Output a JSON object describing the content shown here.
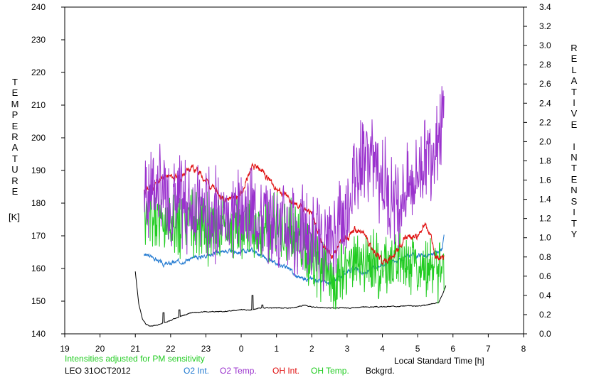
{
  "chart_data": {
    "type": "line",
    "y_left_label": "TEMPERATURE",
    "y_left_unit": "[K]",
    "y_right_label": "RELATIVE INTENSITY",
    "x_label": "Local Standard Time [h]",
    "note": "Intensities adjusted for PM sensitivity",
    "station_date": "LEO 31OCT2012",
    "x_ticks": [
      "19",
      "20",
      "21",
      "22",
      "23",
      "0",
      "1",
      "2",
      "3",
      "4",
      "5",
      "6",
      "7",
      "8"
    ],
    "xlim": [
      19,
      32
    ],
    "ylim_left": [
      140,
      240
    ],
    "ylim_right": [
      0.0,
      3.4
    ],
    "y_left_ticks": [
      140,
      150,
      160,
      170,
      180,
      190,
      200,
      210,
      220,
      230,
      240
    ],
    "y_right_ticks": [
      "0.0",
      "0.2",
      "0.4",
      "0.6",
      "0.8",
      "1.0",
      "1.2",
      "1.4",
      "1.6",
      "1.8",
      "2.0",
      "2.2",
      "2.4",
      "2.6",
      "2.8",
      "3.0",
      "3.2",
      "3.4"
    ],
    "grid": false,
    "series": [
      {
        "name": "O2 Int.",
        "axis": "right",
        "color": "#1f78d0",
        "style": "noise",
        "seed": 3,
        "amp": 0.03,
        "knots": [
          [
            21.25,
            0.82
          ],
          [
            21.5,
            0.8
          ],
          [
            21.8,
            0.72
          ],
          [
            22.2,
            0.75
          ],
          [
            22.6,
            0.78
          ],
          [
            23.0,
            0.82
          ],
          [
            23.5,
            0.86
          ],
          [
            24.0,
            0.85
          ],
          [
            24.3,
            0.88
          ],
          [
            24.6,
            0.8
          ],
          [
            25.0,
            0.72
          ],
          [
            25.3,
            0.7
          ],
          [
            25.55,
            0.6
          ],
          [
            25.8,
            0.58
          ],
          [
            26.2,
            0.56
          ],
          [
            26.5,
            0.52
          ],
          [
            27.0,
            0.65
          ],
          [
            27.2,
            0.68
          ],
          [
            27.5,
            0.62
          ],
          [
            27.8,
            0.7
          ],
          [
            28.0,
            0.72
          ],
          [
            28.5,
            0.78
          ],
          [
            28.8,
            0.82
          ],
          [
            29.2,
            0.8
          ],
          [
            29.5,
            0.84
          ],
          [
            29.7,
            0.88
          ],
          [
            29.75,
            1.05
          ]
        ]
      },
      {
        "name": "O2 Temp.",
        "axis": "left",
        "color": "#9a32cd",
        "style": "spiky",
        "seed": 7,
        "amp": 12,
        "knots": [
          [
            21.25,
            183
          ],
          [
            21.5,
            185
          ],
          [
            22.0,
            180
          ],
          [
            22.5,
            180
          ],
          [
            23.0,
            177
          ],
          [
            23.5,
            176
          ],
          [
            24.0,
            178
          ],
          [
            24.5,
            176
          ],
          [
            25.0,
            173
          ],
          [
            25.5,
            172
          ],
          [
            25.8,
            170
          ],
          [
            26.2,
            168
          ],
          [
            26.5,
            168
          ],
          [
            27.0,
            178
          ],
          [
            27.3,
            192
          ],
          [
            27.5,
            196
          ],
          [
            27.8,
            192
          ],
          [
            28.2,
            182
          ],
          [
            28.5,
            182
          ],
          [
            28.8,
            185
          ],
          [
            29.0,
            190
          ],
          [
            29.3,
            195
          ],
          [
            29.6,
            202
          ],
          [
            29.75,
            206
          ]
        ]
      },
      {
        "name": "OH Int.",
        "axis": "right",
        "color": "#e01010",
        "style": "noise",
        "seed": 11,
        "amp": 0.05,
        "knots": [
          [
            21.25,
            1.48
          ],
          [
            21.5,
            1.52
          ],
          [
            21.8,
            1.64
          ],
          [
            22.3,
            1.62
          ],
          [
            22.6,
            1.75
          ],
          [
            23.0,
            1.6
          ],
          [
            23.5,
            1.4
          ],
          [
            24.0,
            1.45
          ],
          [
            24.3,
            1.73
          ],
          [
            24.6,
            1.7
          ],
          [
            24.9,
            1.55
          ],
          [
            25.2,
            1.45
          ],
          [
            25.5,
            1.35
          ],
          [
            25.8,
            1.3
          ],
          [
            26.0,
            1.25
          ],
          [
            26.3,
            0.95
          ],
          [
            26.6,
            0.8
          ],
          [
            26.8,
            0.95
          ],
          [
            27.0,
            1.0
          ],
          [
            27.2,
            1.08
          ],
          [
            27.5,
            1.03
          ],
          [
            27.7,
            0.9
          ],
          [
            28.0,
            0.75
          ],
          [
            28.3,
            0.8
          ],
          [
            28.6,
            0.98
          ],
          [
            29.0,
            1.02
          ],
          [
            29.2,
            1.15
          ],
          [
            29.4,
            0.98
          ],
          [
            29.5,
            0.8
          ],
          [
            29.75,
            0.78
          ]
        ]
      },
      {
        "name": "OH Temp.",
        "axis": "left",
        "color": "#22cc22",
        "style": "spiky",
        "seed": 5,
        "amp": 9,
        "knots": [
          [
            21.25,
            176
          ],
          [
            21.5,
            175
          ],
          [
            22.0,
            174
          ],
          [
            22.5,
            174
          ],
          [
            23.0,
            173
          ],
          [
            23.5,
            172
          ],
          [
            24.0,
            173
          ],
          [
            24.5,
            173
          ],
          [
            25.0,
            172
          ],
          [
            25.5,
            170
          ],
          [
            26.0,
            165
          ],
          [
            26.3,
            160
          ],
          [
            26.6,
            155
          ],
          [
            27.0,
            160
          ],
          [
            27.3,
            163
          ],
          [
            27.6,
            162
          ],
          [
            28.0,
            162
          ],
          [
            28.5,
            162
          ],
          [
            29.0,
            160
          ],
          [
            29.3,
            162
          ],
          [
            29.5,
            160
          ],
          [
            29.75,
            158
          ]
        ]
      },
      {
        "name": "Bckgrd.",
        "axis": "right",
        "color": "#000000",
        "style": "noise",
        "seed": 2,
        "amp": 0.006,
        "knots": [
          [
            21.0,
            0.65
          ],
          [
            21.1,
            0.3
          ],
          [
            21.2,
            0.16
          ],
          [
            21.3,
            0.1
          ],
          [
            21.45,
            0.08
          ],
          [
            21.7,
            0.1
          ],
          [
            22.0,
            0.14
          ],
          [
            22.2,
            0.17
          ],
          [
            22.6,
            0.22
          ],
          [
            23.0,
            0.23
          ],
          [
            23.5,
            0.23
          ],
          [
            24.0,
            0.25
          ],
          [
            24.3,
            0.25
          ],
          [
            24.5,
            0.27
          ],
          [
            25.0,
            0.27
          ],
          [
            25.5,
            0.27
          ],
          [
            25.8,
            0.3
          ],
          [
            26.0,
            0.28
          ],
          [
            26.5,
            0.27
          ],
          [
            27.0,
            0.27
          ],
          [
            27.5,
            0.28
          ],
          [
            28.0,
            0.28
          ],
          [
            28.5,
            0.29
          ],
          [
            29.0,
            0.29
          ],
          [
            29.4,
            0.31
          ],
          [
            29.6,
            0.33
          ],
          [
            29.75,
            0.45
          ],
          [
            29.8,
            0.5
          ]
        ]
      }
    ],
    "spikes_right": [
      [
        21.8,
        0.22
      ],
      [
        22.25,
        0.25
      ],
      [
        24.32,
        0.4
      ],
      [
        24.6,
        0.3
      ]
    ]
  }
}
